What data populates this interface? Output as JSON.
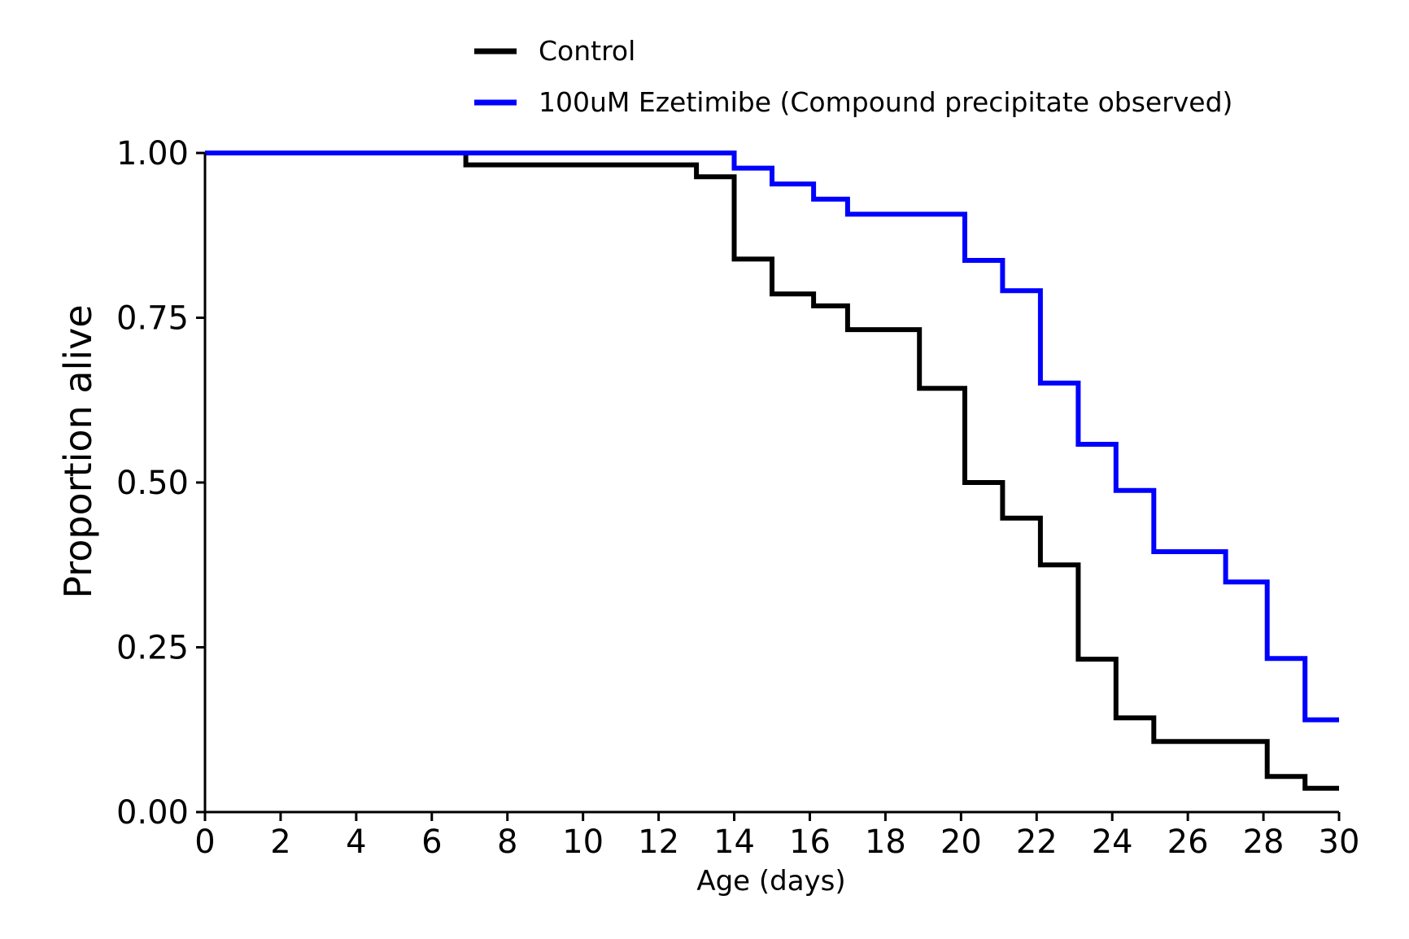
{
  "chart_data": {
    "type": "line",
    "step": "post",
    "title": "",
    "xlabel": "Age (days)",
    "ylabel": "Proportion alive",
    "xlim": [
      0,
      30
    ],
    "ylim": [
      0,
      1
    ],
    "xticks": [
      0,
      2,
      4,
      6,
      8,
      10,
      12,
      14,
      16,
      18,
      20,
      22,
      24,
      26,
      28,
      30
    ],
    "xtick_labels": [
      "0",
      "2",
      "4",
      "6",
      "8",
      "10",
      "12",
      "14",
      "16",
      "18",
      "20",
      "22",
      "24",
      "26",
      "28",
      "30"
    ],
    "yticks": [
      0,
      0.25,
      0.5,
      0.75,
      1.0
    ],
    "ytick_labels": [
      "0.00",
      "0.25",
      "0.50",
      "0.75",
      "1.00"
    ],
    "grid": false,
    "legend_position": "top",
    "series": [
      {
        "name": "Control",
        "color": "#000000",
        "x": [
          0,
          6.9,
          13.0,
          14.0,
          15.0,
          16.1,
          17.0,
          18.9,
          20.1,
          21.1,
          22.1,
          23.1,
          24.1,
          25.1,
          28.1,
          29.1,
          30.0
        ],
        "y": [
          1.0,
          0.982,
          0.964,
          0.839,
          0.786,
          0.768,
          0.732,
          0.643,
          0.5,
          0.446,
          0.375,
          0.232,
          0.143,
          0.107,
          0.054,
          0.036,
          0.036
        ]
      },
      {
        "name": "100uM Ezetimibe (Compound precipitate observed)",
        "color": "#0000ff",
        "x": [
          0,
          14.0,
          15.0,
          16.1,
          17.0,
          20.1,
          21.1,
          22.1,
          23.1,
          24.1,
          25.1,
          27.0,
          28.1,
          29.1,
          30.0
        ],
        "y": [
          1.0,
          0.977,
          0.953,
          0.93,
          0.907,
          0.837,
          0.791,
          0.651,
          0.558,
          0.488,
          0.395,
          0.349,
          0.233,
          0.14,
          0.14
        ]
      }
    ]
  }
}
